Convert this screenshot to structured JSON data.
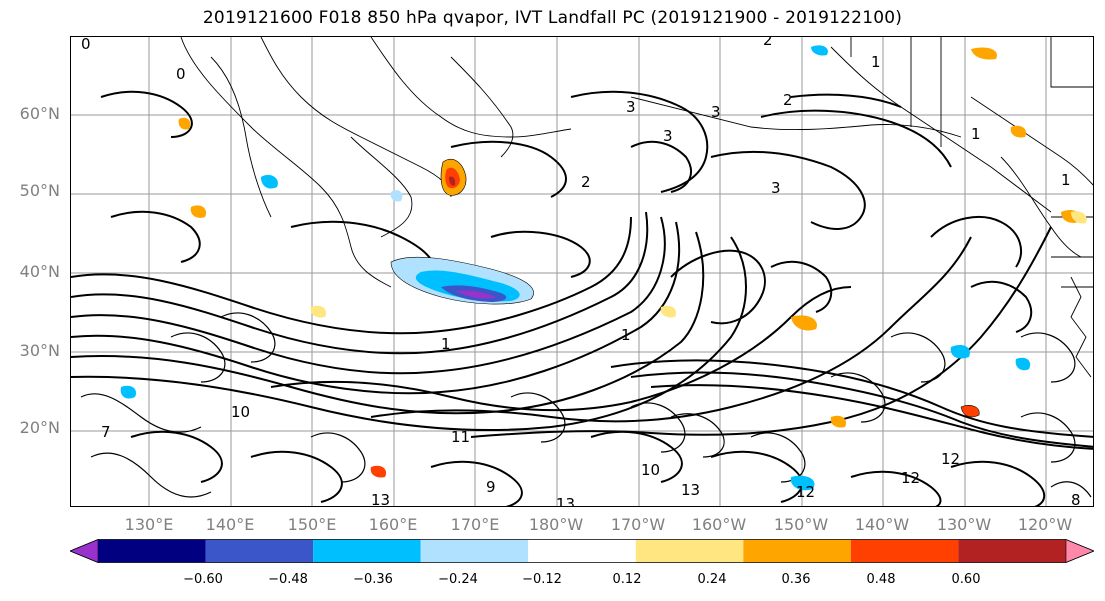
{
  "title": "2019121600 F018 850 hPa qvapor, IVT Landfall PC (2019121900 - 2019122100)",
  "lat_labels": [
    "60°N",
    "50°N",
    "40°N",
    "30°N",
    "20°N"
  ],
  "lon_labels": [
    "130°E",
    "140°E",
    "150°E",
    "160°E",
    "170°E",
    "180°W",
    "170°W",
    "160°W",
    "150°W",
    "140°W",
    "130°W",
    "120°W"
  ],
  "contour_labels": [
    "0",
    "0",
    "1",
    "2",
    "3",
    "3",
    "3",
    "2",
    "1",
    "1",
    "1",
    "2",
    "3",
    "1",
    "10",
    "11",
    "13",
    "13",
    "13",
    "12",
    "12",
    "10",
    "9",
    "7",
    "8",
    "12"
  ],
  "colorbar": {
    "ticks": [
      "−0.60",
      "−0.48",
      "−0.36",
      "−0.24",
      "−0.12",
      "0.12",
      "0.24",
      "0.36",
      "0.48",
      "0.60"
    ],
    "colors": [
      "#9932CC",
      "#000080",
      "#3A56C8",
      "#00BFFF",
      "#B0E2FF",
      "#FFFFFF",
      "#FFE680",
      "#FFA500",
      "#FF4000",
      "#B22222",
      "#FF88AA"
    ]
  }
}
